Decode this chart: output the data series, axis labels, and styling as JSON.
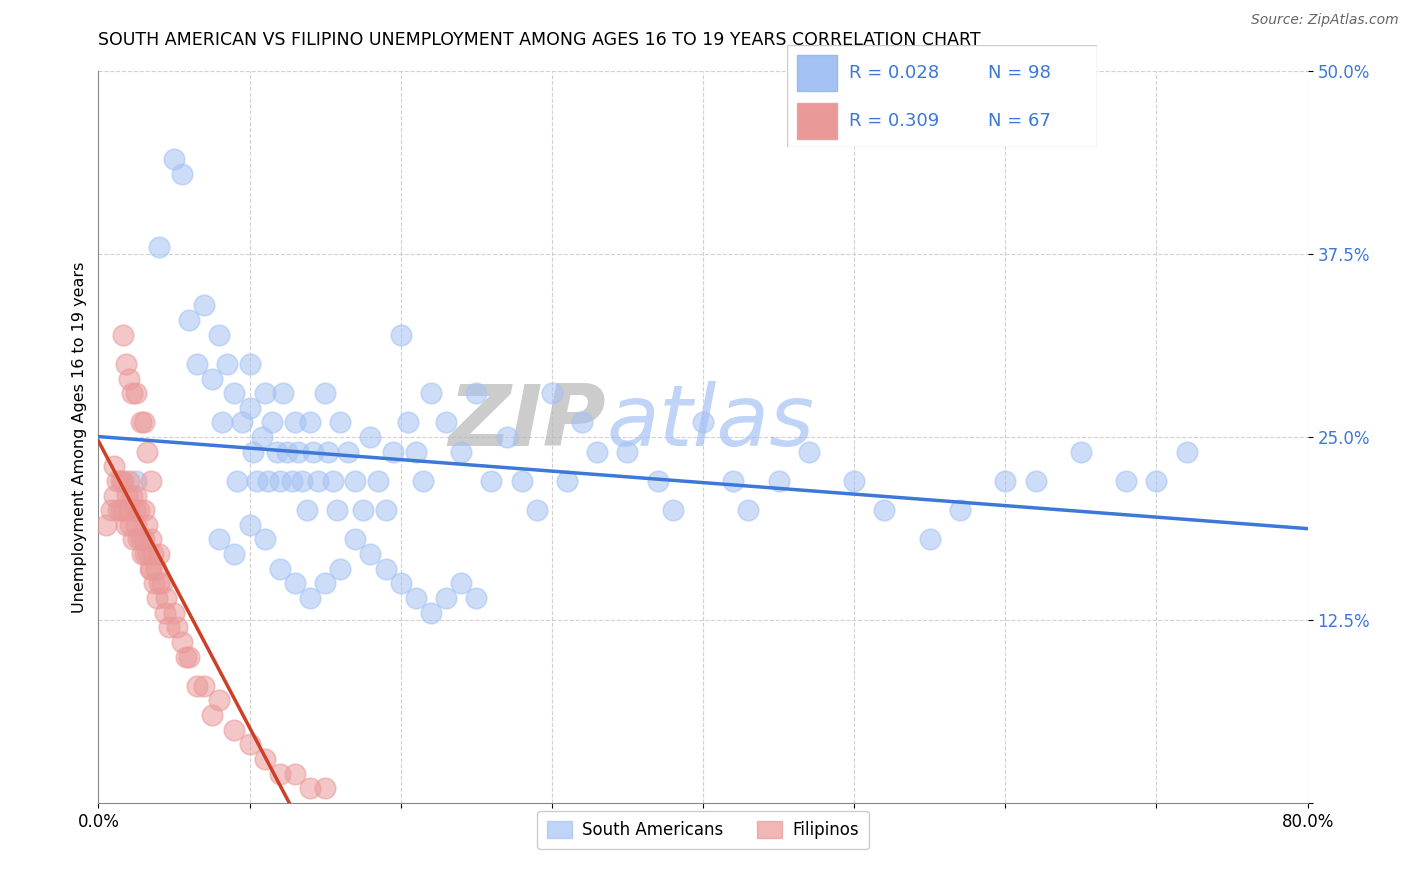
{
  "title": "SOUTH AMERICAN VS FILIPINO UNEMPLOYMENT AMONG AGES 16 TO 19 YEARS CORRELATION CHART",
  "source": "Source: ZipAtlas.com",
  "ylabel": "Unemployment Among Ages 16 to 19 years",
  "xlim": [
    0,
    0.8
  ],
  "ylim": [
    0,
    0.5
  ],
  "xticks": [
    0.0,
    0.1,
    0.2,
    0.3,
    0.4,
    0.5,
    0.6,
    0.7,
    0.8
  ],
  "yticks": [
    0.0,
    0.125,
    0.25,
    0.375,
    0.5
  ],
  "blue_color": "#a4c2f4",
  "pink_color": "#ea9999",
  "trend_blue": "#3c78d8",
  "trend_pink": "#cc4125",
  "zip_color": "#b7b7b7",
  "atlas_color": "#a4c2f4",
  "legend_labels": [
    "South Americans",
    "Filipinos"
  ],
  "blue_r": "R = 0.028",
  "blue_n": "N = 98",
  "pink_r": "R = 0.309",
  "pink_n": "N = 67",
  "sa_x": [
    0.025,
    0.04,
    0.05,
    0.055,
    0.06,
    0.065,
    0.07,
    0.075,
    0.08,
    0.082,
    0.085,
    0.09,
    0.092,
    0.095,
    0.1,
    0.1,
    0.102,
    0.105,
    0.108,
    0.11,
    0.112,
    0.115,
    0.118,
    0.12,
    0.122,
    0.125,
    0.128,
    0.13,
    0.132,
    0.135,
    0.138,
    0.14,
    0.142,
    0.145,
    0.15,
    0.152,
    0.155,
    0.158,
    0.16,
    0.165,
    0.17,
    0.175,
    0.18,
    0.185,
    0.19,
    0.195,
    0.2,
    0.205,
    0.21,
    0.215,
    0.22,
    0.23,
    0.24,
    0.25,
    0.26,
    0.27,
    0.28,
    0.29,
    0.3,
    0.31,
    0.32,
    0.33,
    0.35,
    0.37,
    0.38,
    0.4,
    0.42,
    0.43,
    0.45,
    0.47,
    0.5,
    0.52,
    0.55,
    0.57,
    0.6,
    0.62,
    0.65,
    0.68,
    0.7,
    0.72,
    0.08,
    0.09,
    0.1,
    0.11,
    0.12,
    0.13,
    0.14,
    0.15,
    0.16,
    0.17,
    0.18,
    0.19,
    0.2,
    0.21,
    0.22,
    0.23,
    0.24,
    0.25
  ],
  "sa_y": [
    0.22,
    0.38,
    0.44,
    0.43,
    0.33,
    0.3,
    0.34,
    0.29,
    0.32,
    0.26,
    0.3,
    0.28,
    0.22,
    0.26,
    0.3,
    0.27,
    0.24,
    0.22,
    0.25,
    0.28,
    0.22,
    0.26,
    0.24,
    0.22,
    0.28,
    0.24,
    0.22,
    0.26,
    0.24,
    0.22,
    0.2,
    0.26,
    0.24,
    0.22,
    0.28,
    0.24,
    0.22,
    0.2,
    0.26,
    0.24,
    0.22,
    0.2,
    0.25,
    0.22,
    0.2,
    0.24,
    0.32,
    0.26,
    0.24,
    0.22,
    0.28,
    0.26,
    0.24,
    0.28,
    0.22,
    0.25,
    0.22,
    0.2,
    0.28,
    0.22,
    0.26,
    0.24,
    0.24,
    0.22,
    0.2,
    0.26,
    0.22,
    0.2,
    0.22,
    0.24,
    0.22,
    0.2,
    0.18,
    0.2,
    0.22,
    0.22,
    0.24,
    0.22,
    0.22,
    0.24,
    0.18,
    0.17,
    0.19,
    0.18,
    0.16,
    0.15,
    0.14,
    0.15,
    0.16,
    0.18,
    0.17,
    0.16,
    0.15,
    0.14,
    0.13,
    0.14,
    0.15,
    0.14
  ],
  "fil_x": [
    0.005,
    0.008,
    0.01,
    0.01,
    0.012,
    0.013,
    0.015,
    0.015,
    0.016,
    0.017,
    0.018,
    0.019,
    0.02,
    0.02,
    0.021,
    0.022,
    0.023,
    0.024,
    0.025,
    0.025,
    0.026,
    0.027,
    0.028,
    0.029,
    0.03,
    0.03,
    0.031,
    0.032,
    0.033,
    0.034,
    0.035,
    0.035,
    0.036,
    0.037,
    0.038,
    0.039,
    0.04,
    0.04,
    0.042,
    0.044,
    0.045,
    0.047,
    0.05,
    0.052,
    0.055,
    0.058,
    0.06,
    0.065,
    0.07,
    0.075,
    0.08,
    0.09,
    0.1,
    0.11,
    0.12,
    0.13,
    0.14,
    0.15,
    0.016,
    0.018,
    0.02,
    0.022,
    0.025,
    0.028,
    0.03,
    0.032,
    0.035
  ],
  "fil_y": [
    0.19,
    0.2,
    0.21,
    0.23,
    0.22,
    0.2,
    0.22,
    0.2,
    0.22,
    0.2,
    0.19,
    0.21,
    0.2,
    0.22,
    0.19,
    0.21,
    0.18,
    0.2,
    0.19,
    0.21,
    0.18,
    0.2,
    0.18,
    0.17,
    0.2,
    0.18,
    0.17,
    0.19,
    0.17,
    0.16,
    0.18,
    0.16,
    0.17,
    0.15,
    0.16,
    0.14,
    0.17,
    0.15,
    0.15,
    0.13,
    0.14,
    0.12,
    0.13,
    0.12,
    0.11,
    0.1,
    0.1,
    0.08,
    0.08,
    0.06,
    0.07,
    0.05,
    0.04,
    0.03,
    0.02,
    0.02,
    0.01,
    0.01,
    0.32,
    0.3,
    0.29,
    0.28,
    0.28,
    0.26,
    0.26,
    0.24,
    0.22
  ]
}
